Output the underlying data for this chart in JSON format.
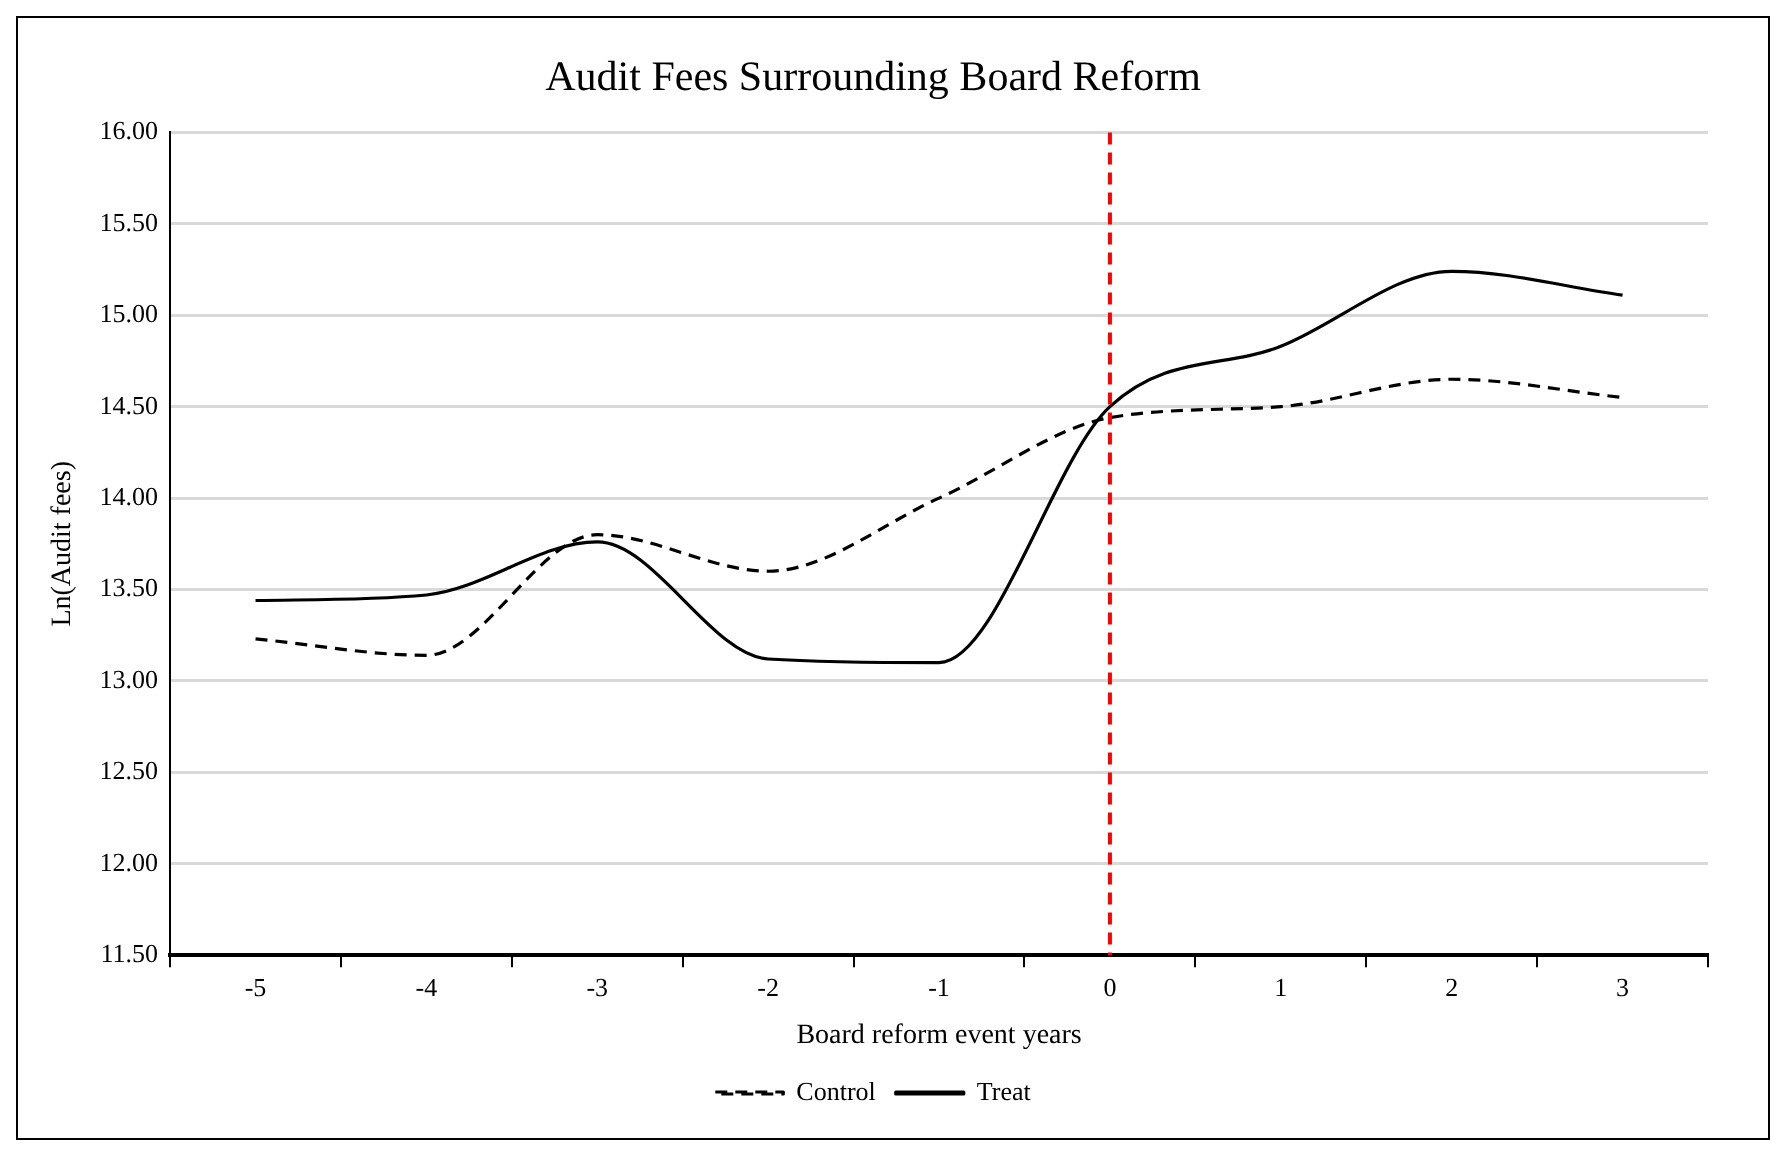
{
  "chart_data": {
    "type": "line",
    "title": "Audit Fees Surrounding Board Reform",
    "xlabel": "Board reform event years",
    "ylabel": "Ln(Audit fees)",
    "categories": [
      "-5",
      "-4",
      "-3",
      "-2",
      "-1",
      "0",
      "1",
      "2",
      "3"
    ],
    "series": [
      {
        "name": "Control",
        "color": "#000000",
        "line_style": "dashed",
        "values": [
          13.23,
          13.14,
          13.8,
          13.6,
          14.0,
          14.44,
          14.5,
          14.65,
          14.55
        ]
      },
      {
        "name": "Treat",
        "color": "#000000",
        "line_style": "solid",
        "values": [
          13.44,
          13.47,
          13.76,
          13.12,
          13.1,
          14.5,
          14.83,
          15.24,
          15.11
        ]
      }
    ],
    "ylim": [
      11.5,
      16
    ],
    "yticks": [
      {
        "value": 11.5,
        "label": "11.50"
      },
      {
        "value": 12,
        "label": "12.00"
      },
      {
        "value": 12.5,
        "label": "12.50"
      },
      {
        "value": 13,
        "label": "13.00"
      },
      {
        "value": 13.5,
        "label": "13.50"
      },
      {
        "value": 14,
        "label": "14.00"
      },
      {
        "value": 14.5,
        "label": "14.50"
      },
      {
        "value": 15,
        "label": "15.00"
      },
      {
        "value": 15.5,
        "label": "15.50"
      },
      {
        "value": 16,
        "label": "16.00"
      }
    ],
    "ref_lines": [
      {
        "axis": "x",
        "value": "0",
        "color": "#ff0000",
        "line_style": "dashed"
      }
    ],
    "grid": "y",
    "legend": "bottom",
    "marker": "none"
  }
}
